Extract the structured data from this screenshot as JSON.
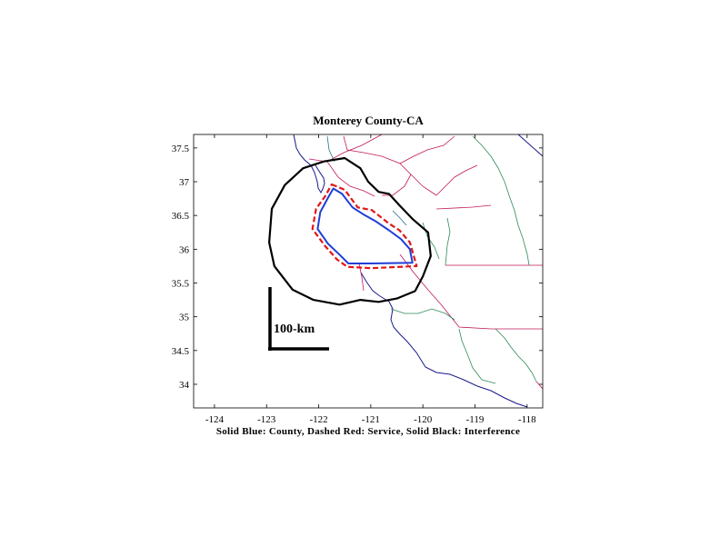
{
  "title": "Monterey County-CA",
  "caption": "Solid Blue: County, Dashed Red: Service, Solid Black: Interference",
  "scale_bar": {
    "label": "100-km"
  },
  "axes": {
    "xlim": [
      -124.4,
      -117.7
    ],
    "ylim": [
      33.65,
      37.7
    ],
    "x_ticks": [
      {
        "value": -124,
        "label": "-124"
      },
      {
        "value": -123,
        "label": "-123"
      },
      {
        "value": -122,
        "label": "-122"
      },
      {
        "value": -121,
        "label": "-121"
      },
      {
        "value": -120,
        "label": "-120"
      },
      {
        "value": -119,
        "label": "-119"
      },
      {
        "value": -118,
        "label": "-118"
      }
    ],
    "y_ticks": [
      {
        "value": 37.5,
        "label": "37.5"
      },
      {
        "value": 37,
        "label": "37"
      },
      {
        "value": 36.5,
        "label": "36.5"
      },
      {
        "value": 36,
        "label": "36"
      },
      {
        "value": 35.5,
        "label": "35.5"
      },
      {
        "value": 35,
        "label": "35"
      },
      {
        "value": 34.5,
        "label": "34.5"
      },
      {
        "value": 34,
        "label": "34"
      }
    ]
  },
  "colors": {
    "county": "#1f3fd6",
    "service": "#e01818",
    "interference": "#000000",
    "county_lines": "#2e8b57",
    "state_lines": "#c2185b",
    "other_lines": "#1a1a8a"
  },
  "chart_data": {
    "type": "map",
    "region": "Monterey County-CA",
    "layers": [
      {
        "legend": "Solid Black: Interference",
        "coords": [
          [
            -121.9,
            37.3
          ],
          [
            -121.5,
            37.35
          ],
          [
            -121.2,
            37.2
          ],
          [
            -121.05,
            37.0
          ],
          [
            -120.85,
            36.85
          ],
          [
            -120.65,
            36.82
          ],
          [
            -120.45,
            36.65
          ],
          [
            -120.2,
            36.45
          ],
          [
            -119.9,
            36.25
          ],
          [
            -119.85,
            35.9
          ],
          [
            -120.0,
            35.6
          ],
          [
            -120.15,
            35.38
          ],
          [
            -120.5,
            35.27
          ],
          [
            -120.85,
            35.22
          ],
          [
            -121.2,
            35.25
          ],
          [
            -121.6,
            35.18
          ],
          [
            -122.1,
            35.25
          ],
          [
            -122.5,
            35.4
          ],
          [
            -122.85,
            35.75
          ],
          [
            -122.95,
            36.1
          ],
          [
            -122.9,
            36.6
          ],
          [
            -122.65,
            36.95
          ],
          [
            -122.3,
            37.2
          ],
          [
            -121.9,
            37.3
          ]
        ]
      },
      {
        "legend": "Dashed Red: Service",
        "coords": [
          [
            -121.75,
            36.96
          ],
          [
            -121.5,
            36.88
          ],
          [
            -121.25,
            36.62
          ],
          [
            -120.98,
            36.58
          ],
          [
            -120.65,
            36.38
          ],
          [
            -120.45,
            36.28
          ],
          [
            -120.25,
            36.1
          ],
          [
            -120.12,
            35.75
          ],
          [
            -121.0,
            35.72
          ],
          [
            -121.45,
            35.74
          ],
          [
            -121.65,
            35.85
          ],
          [
            -121.88,
            36.05
          ],
          [
            -122.12,
            36.3
          ],
          [
            -122.05,
            36.6
          ],
          [
            -121.88,
            36.78
          ],
          [
            -121.75,
            36.96
          ]
        ]
      },
      {
        "legend": "Solid Blue: County",
        "coords": [
          [
            -121.72,
            36.9
          ],
          [
            -121.55,
            36.82
          ],
          [
            -121.35,
            36.62
          ],
          [
            -121.15,
            36.52
          ],
          [
            -120.92,
            36.42
          ],
          [
            -120.65,
            36.28
          ],
          [
            -120.42,
            36.15
          ],
          [
            -120.25,
            36.0
          ],
          [
            -120.2,
            35.8
          ],
          [
            -121.0,
            35.79
          ],
          [
            -121.43,
            35.79
          ],
          [
            -121.6,
            35.92
          ],
          [
            -121.82,
            36.08
          ],
          [
            -122.02,
            36.3
          ],
          [
            -121.97,
            36.55
          ],
          [
            -121.83,
            36.75
          ],
          [
            -121.72,
            36.9
          ]
        ]
      }
    ]
  }
}
